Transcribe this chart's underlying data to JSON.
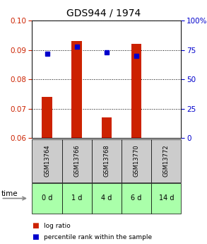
{
  "title": "GDS944 / 1974",
  "samples": [
    "GSM13764",
    "GSM13766",
    "GSM13768",
    "GSM13770",
    "GSM13772"
  ],
  "time_labels": [
    "0 d",
    "1 d",
    "4 d",
    "6 d",
    "14 d"
  ],
  "log_ratio": [
    0.074,
    0.093,
    0.067,
    0.092,
    0.06
  ],
  "percentile_rank": [
    72,
    78,
    73,
    70,
    null
  ],
  "ylim_left": [
    0.06,
    0.1
  ],
  "ylim_right": [
    0,
    100
  ],
  "yticks_left": [
    0.06,
    0.07,
    0.08,
    0.09,
    0.1
  ],
  "yticks_right": [
    0,
    25,
    50,
    75,
    100
  ],
  "bar_color": "#cc2200",
  "dot_color": "#0000cc",
  "title_fontsize": 10,
  "axis_label_color_left": "#cc2200",
  "axis_label_color_right": "#0000cc",
  "gsm_bg_color": "#cccccc",
  "time_bg_color": "#aaffaa",
  "legend_bar_label": "log ratio",
  "legend_dot_label": "percentile rank within the sample"
}
